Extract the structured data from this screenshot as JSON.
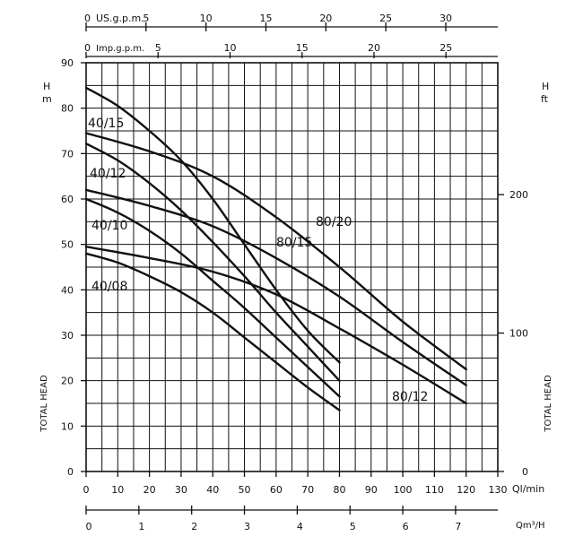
{
  "chart_data": {
    "type": "line",
    "x_axis": {
      "unit_label": "Ql/min",
      "range": [
        0,
        130
      ],
      "ticks": [
        0,
        10,
        20,
        30,
        40,
        50,
        60,
        70,
        80,
        90,
        100,
        110,
        120,
        130
      ]
    },
    "x2_axis": {
      "unit_label": "Qm³/H",
      "range": [
        0,
        7.8
      ],
      "ticks": [
        "0",
        "1",
        "2",
        "3",
        "4",
        "5",
        "6",
        "7"
      ]
    },
    "top_axis_us": {
      "unit_label": "US.g.p.m.",
      "range": [
        0,
        34.34
      ],
      "ticks": [
        "0",
        "5",
        "10",
        "15",
        "20",
        "25",
        "30"
      ]
    },
    "top_axis_imp": {
      "unit_label": "Imp.g.p.m.",
      "range": [
        0,
        28.6
      ],
      "ticks": [
        "0",
        "5",
        "10",
        "15",
        "20",
        "25"
      ]
    },
    "y_axis": {
      "unit_top": "H",
      "unit_bottom": "m",
      "label": "TOTAL HEAD",
      "range": [
        0,
        90
      ],
      "ticks": [
        0,
        10,
        20,
        30,
        40,
        50,
        60,
        70,
        80,
        90
      ]
    },
    "y2_axis": {
      "unit_top": "H",
      "unit_bottom": "ft",
      "label": "TOTAL HEAD",
      "range_ft": [
        0,
        295.3
      ],
      "ticks": [
        0,
        100,
        200
      ]
    },
    "grid": true,
    "series": [
      {
        "name": "40/15",
        "x": [
          0,
          10,
          20,
          30,
          40,
          50,
          60,
          70,
          80
        ],
        "y": [
          84.5,
          80.5,
          75,
          68.5,
          60,
          50,
          40,
          31,
          24
        ]
      },
      {
        "name": "40/12",
        "x": [
          0,
          10,
          20,
          30,
          40,
          50,
          60,
          70,
          80
        ],
        "y": [
          72.2,
          68.5,
          63.5,
          57.5,
          50.5,
          43,
          35,
          27.5,
          20
        ]
      },
      {
        "name": "40/10",
        "x": [
          0,
          10,
          20,
          30,
          40,
          50,
          60,
          70,
          80
        ],
        "y": [
          60,
          57,
          53,
          48,
          42,
          36,
          29.5,
          23,
          16.5
        ]
      },
      {
        "name": "40/08",
        "x": [
          0,
          10,
          20,
          30,
          40,
          50,
          60,
          70,
          80
        ],
        "y": [
          48,
          46,
          43,
          39.5,
          35,
          29.5,
          24,
          18.5,
          13.5
        ]
      },
      {
        "name": "80/20",
        "x": [
          0,
          20,
          40,
          60,
          80,
          100,
          120
        ],
        "y": [
          74.5,
          70.5,
          65,
          56,
          45,
          33,
          22.5
        ]
      },
      {
        "name": "80/15",
        "x": [
          0,
          20,
          40,
          60,
          80,
          100,
          120
        ],
        "y": [
          62,
          58.5,
          54,
          47,
          38.5,
          28.5,
          19
        ]
      },
      {
        "name": "80/12",
        "x": [
          0,
          20,
          40,
          60,
          80,
          100,
          120
        ],
        "y": [
          49.5,
          47,
          44,
          39,
          31.5,
          23.5,
          15
        ]
      }
    ]
  }
}
